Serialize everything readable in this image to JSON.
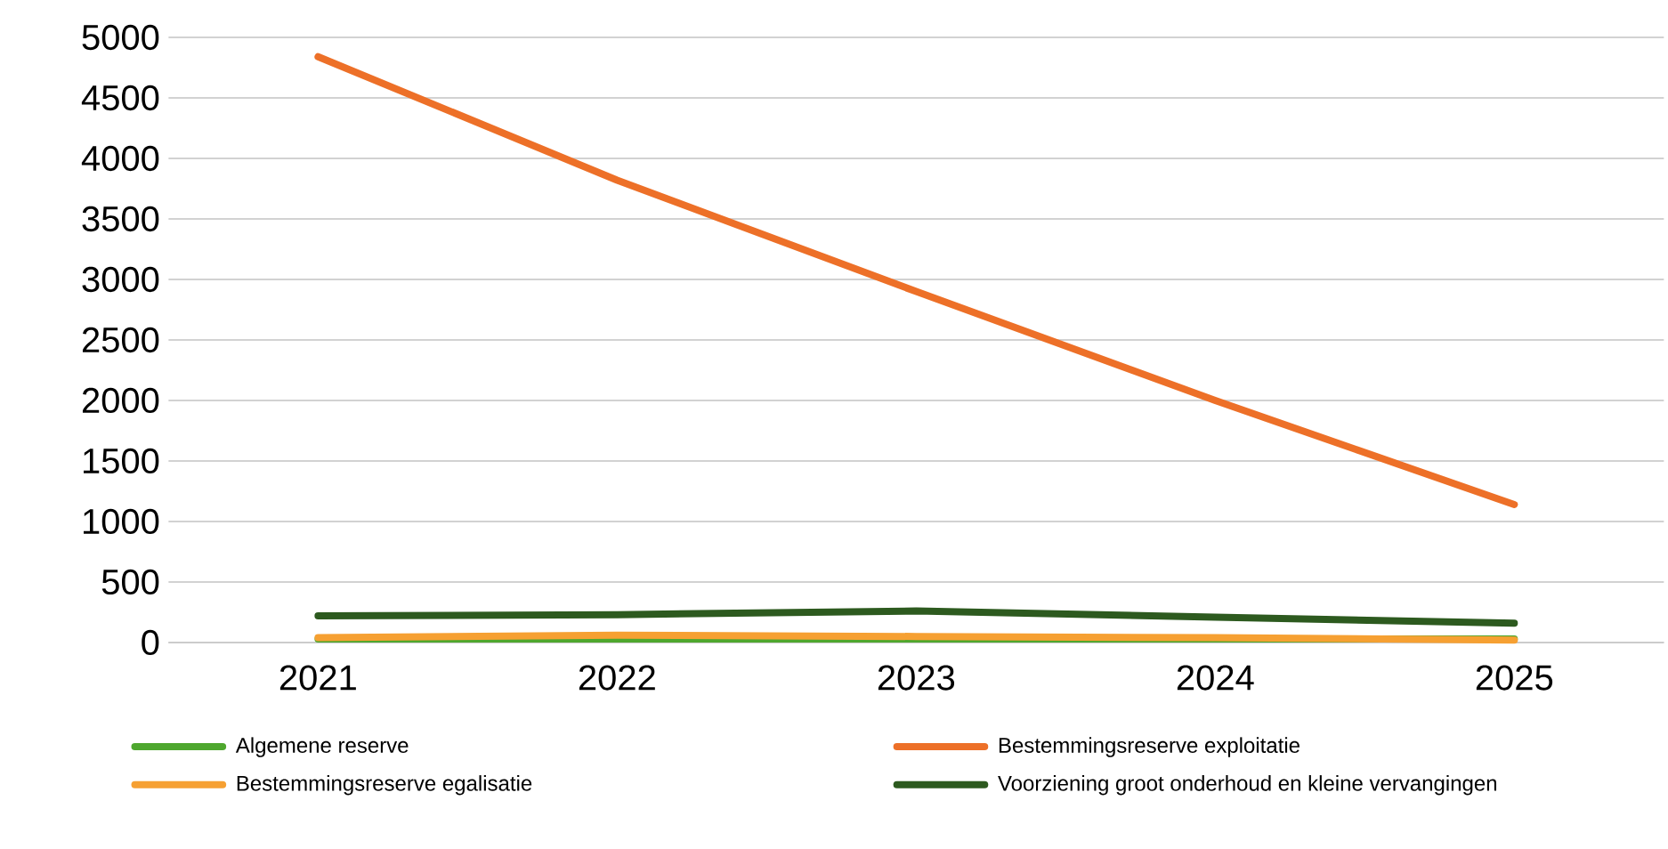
{
  "chart_data": {
    "type": "line",
    "categories": [
      "2021",
      "2022",
      "2023",
      "2024",
      "2025"
    ],
    "series": [
      {
        "name": "Algemene reserve",
        "color": "#4ea72e",
        "values": [
          30,
          30,
          30,
          30,
          30
        ]
      },
      {
        "name": "Bestemmingsreserve exploitatie",
        "color": "#ed7028",
        "values": [
          4840,
          3820,
          2900,
          2000,
          1140
        ]
      },
      {
        "name": "Bestemmingsreserve egalisatie",
        "color": "#f6a032",
        "values": [
          40,
          60,
          50,
          40,
          20
        ]
      },
      {
        "name": "Voorziening groot onderhoud en kleine vervangingen",
        "color": "#2d5a1f",
        "values": [
          220,
          230,
          260,
          210,
          160
        ]
      }
    ],
    "ylim": [
      0,
      5000
    ],
    "yticks": [
      0,
      500,
      1000,
      1500,
      2000,
      2500,
      3000,
      3500,
      4000,
      4500,
      5000
    ],
    "grid": "y",
    "legend": "bottom",
    "marker": "none",
    "line_style": "solid"
  }
}
